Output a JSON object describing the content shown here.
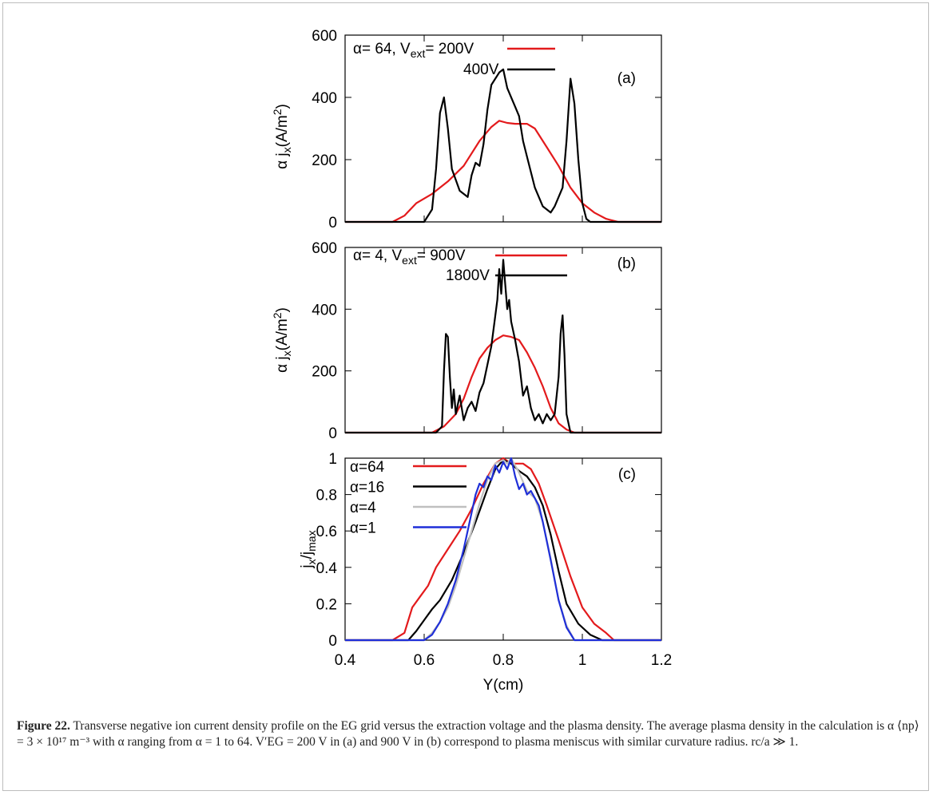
{
  "figure": {
    "caption_label": "Figure 22.",
    "caption_text": "Transverse negative ion current density profile on the EG grid versus the extraction voltage and the plasma density. The average plasma density in the calculation is α ⟨np⟩ = 3 × 10¹⁷ m⁻³ with α ranging from α = 1 to 64. V′EG = 200 V in (a) and 900 V in (b) correspond to plasma meniscus with similar curvature radius. rc/a ≫ 1."
  },
  "colors": {
    "red": "#e31a1c",
    "black": "#000000",
    "gray": "#c0c0c0",
    "blue": "#1f2fd8"
  },
  "chart_data": [
    {
      "type": "line",
      "panel_label": "(a)",
      "xlim": [
        0.4,
        1.2
      ],
      "ylim": [
        0,
        600
      ],
      "yticks": [
        "0",
        "200",
        "400",
        "600"
      ],
      "ylabel": "α jx(A/m²)",
      "legend_title": "α= 64, Vext= 200V",
      "series": [
        {
          "name": "α= 64, Vext= 200V",
          "color": "#e31a1c",
          "x": [
            0.4,
            0.52,
            0.55,
            0.58,
            0.62,
            0.66,
            0.7,
            0.74,
            0.77,
            0.79,
            0.81,
            0.83,
            0.86,
            0.88,
            0.91,
            0.94,
            0.97,
            1.0,
            1.03,
            1.06,
            1.09,
            1.2
          ],
          "y": [
            0,
            0,
            20,
            60,
            90,
            130,
            180,
            260,
            305,
            325,
            318,
            315,
            315,
            300,
            240,
            180,
            110,
            60,
            30,
            10,
            0,
            0
          ]
        },
        {
          "name": "400V",
          "color": "#000000",
          "x": [
            0.4,
            0.6,
            0.62,
            0.63,
            0.64,
            0.65,
            0.66,
            0.67,
            0.69,
            0.71,
            0.72,
            0.73,
            0.74,
            0.75,
            0.76,
            0.77,
            0.79,
            0.8,
            0.81,
            0.83,
            0.84,
            0.85,
            0.86,
            0.88,
            0.9,
            0.92,
            0.93,
            0.95,
            0.96,
            0.97,
            0.98,
            0.99,
            1.0,
            1.01,
            1.02,
            1.2
          ],
          "y": [
            0,
            0,
            40,
            170,
            350,
            400,
            300,
            170,
            100,
            80,
            150,
            190,
            180,
            250,
            360,
            440,
            480,
            490,
            430,
            370,
            340,
            260,
            210,
            110,
            50,
            30,
            50,
            110,
            260,
            460,
            380,
            200,
            60,
            10,
            0,
            0
          ]
        }
      ]
    },
    {
      "type": "line",
      "panel_label": "(b)",
      "xlim": [
        0.4,
        1.2
      ],
      "ylim": [
        0,
        600
      ],
      "yticks": [
        "0",
        "200",
        "400",
        "600"
      ],
      "ylabel": "α jx(A/m²)",
      "legend_title": "α= 4, Vext= 900V",
      "series": [
        {
          "name": "α= 4, Vext= 900V",
          "color": "#e31a1c",
          "x": [
            0.4,
            0.62,
            0.65,
            0.68,
            0.7,
            0.72,
            0.74,
            0.76,
            0.78,
            0.8,
            0.82,
            0.84,
            0.86,
            0.88,
            0.9,
            0.92,
            0.94,
            0.96,
            0.98,
            1.0,
            1.2
          ],
          "y": [
            0,
            0,
            20,
            60,
            110,
            180,
            240,
            275,
            300,
            315,
            310,
            300,
            260,
            210,
            150,
            80,
            30,
            10,
            0,
            0,
            0
          ]
        },
        {
          "name": "1800V",
          "color": "#000000",
          "x": [
            0.4,
            0.63,
            0.645,
            0.65,
            0.655,
            0.66,
            0.665,
            0.67,
            0.675,
            0.68,
            0.69,
            0.7,
            0.71,
            0.72,
            0.73,
            0.74,
            0.75,
            0.76,
            0.77,
            0.78,
            0.785,
            0.79,
            0.795,
            0.8,
            0.805,
            0.81,
            0.815,
            0.82,
            0.83,
            0.84,
            0.85,
            0.86,
            0.87,
            0.88,
            0.89,
            0.9,
            0.91,
            0.92,
            0.93,
            0.94,
            0.945,
            0.95,
            0.955,
            0.96,
            0.97,
            1.2
          ],
          "y": [
            0,
            0,
            20,
            200,
            320,
            310,
            180,
            80,
            140,
            60,
            120,
            40,
            80,
            100,
            70,
            130,
            160,
            220,
            280,
            380,
            430,
            530,
            450,
            560,
            480,
            400,
            430,
            360,
            300,
            230,
            120,
            150,
            80,
            40,
            60,
            30,
            60,
            40,
            60,
            180,
            320,
            380,
            250,
            60,
            0,
            0
          ]
        }
      ]
    },
    {
      "type": "line",
      "panel_label": "(c)",
      "xlim": [
        0.4,
        1.2
      ],
      "ylim": [
        0,
        1
      ],
      "xticks": [
        "0.4",
        "0.6",
        "0.8",
        "1",
        "1.2"
      ],
      "yticks": [
        "0",
        "0.2",
        "0.4",
        "0.6",
        "0.8",
        "1"
      ],
      "xlabel": "Y(cm)",
      "ylabel": "jx/jmax",
      "series": [
        {
          "name": "α=64",
          "color": "#e31a1c",
          "x": [
            0.4,
            0.52,
            0.55,
            0.57,
            0.59,
            0.61,
            0.63,
            0.66,
            0.69,
            0.72,
            0.75,
            0.78,
            0.8,
            0.82,
            0.85,
            0.87,
            0.89,
            0.91,
            0.94,
            0.97,
            1.0,
            1.03,
            1.06,
            1.08,
            1.2
          ],
          "y": [
            0,
            0,
            0.04,
            0.18,
            0.24,
            0.3,
            0.4,
            0.5,
            0.6,
            0.72,
            0.86,
            0.97,
            1.0,
            0.97,
            0.97,
            0.94,
            0.86,
            0.74,
            0.55,
            0.35,
            0.18,
            0.09,
            0.04,
            0,
            0
          ]
        },
        {
          "name": "α=16",
          "color": "#000000",
          "x": [
            0.4,
            0.56,
            0.58,
            0.6,
            0.62,
            0.64,
            0.67,
            0.7,
            0.73,
            0.76,
            0.78,
            0.8,
            0.82,
            0.84,
            0.86,
            0.88,
            0.9,
            0.92,
            0.94,
            0.96,
            0.99,
            1.02,
            1.05,
            1.2
          ],
          "y": [
            0,
            0,
            0.05,
            0.11,
            0.17,
            0.22,
            0.33,
            0.48,
            0.65,
            0.83,
            0.94,
            0.99,
            0.97,
            0.93,
            0.9,
            0.84,
            0.74,
            0.58,
            0.38,
            0.2,
            0.09,
            0.03,
            0,
            0
          ]
        },
        {
          "name": "α=4",
          "color": "#c0c0c0",
          "x": [
            0.4,
            0.6,
            0.62,
            0.64,
            0.66,
            0.68,
            0.7,
            0.72,
            0.74,
            0.76,
            0.78,
            0.8,
            0.81,
            0.82,
            0.84,
            0.86,
            0.88,
            0.9,
            0.92,
            0.94,
            0.96,
            0.98,
            1.2
          ],
          "y": [
            0,
            0,
            0.04,
            0.1,
            0.18,
            0.3,
            0.45,
            0.6,
            0.75,
            0.88,
            0.97,
            0.99,
            0.97,
            1.0,
            0.92,
            0.82,
            0.78,
            0.65,
            0.45,
            0.22,
            0.08,
            0,
            0
          ]
        },
        {
          "name": "α=1",
          "color": "#1f2fd8",
          "x": [
            0.4,
            0.6,
            0.62,
            0.64,
            0.66,
            0.68,
            0.7,
            0.72,
            0.73,
            0.74,
            0.75,
            0.76,
            0.77,
            0.78,
            0.79,
            0.8,
            0.81,
            0.82,
            0.83,
            0.84,
            0.85,
            0.86,
            0.87,
            0.88,
            0.89,
            0.9,
            0.92,
            0.94,
            0.96,
            0.98,
            1.2
          ],
          "y": [
            0,
            0,
            0.03,
            0.1,
            0.2,
            0.33,
            0.5,
            0.7,
            0.8,
            0.86,
            0.84,
            0.9,
            0.88,
            0.96,
            0.92,
            0.98,
            0.94,
            1.0,
            0.9,
            0.83,
            0.86,
            0.8,
            0.82,
            0.78,
            0.74,
            0.65,
            0.44,
            0.22,
            0.07,
            0,
            0
          ]
        }
      ]
    }
  ]
}
